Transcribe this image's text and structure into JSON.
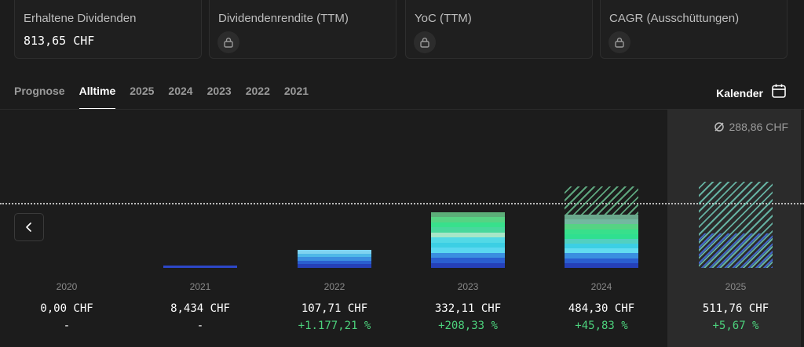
{
  "cards": [
    {
      "title": "Erhaltene Dividenden",
      "value": "813,65 CHF",
      "locked": false
    },
    {
      "title": "Dividendenrendite (TTM)",
      "value": null,
      "locked": true
    },
    {
      "title": "YoC (TTM)",
      "value": null,
      "locked": true
    },
    {
      "title": "CAGR (Ausschüttungen)",
      "value": null,
      "locked": true
    }
  ],
  "tabs": [
    "Prognose",
    "Alltime",
    "2025",
    "2024",
    "2023",
    "2022",
    "2021"
  ],
  "active_tab": "Alltime",
  "kalender_label": "Kalender",
  "average_label": "288,86 CHF",
  "icons": {
    "lock": "lock-icon",
    "calendar": "calendar-icon",
    "chevron": "chevron-left-icon",
    "average": "average-icon"
  },
  "colors": {
    "accent_green": "#4cd17c",
    "background": "#1c1c1c",
    "selected_column": "#2b2b2b"
  },
  "chart_data": {
    "type": "bar",
    "categories": [
      "2020",
      "2021",
      "2022",
      "2023",
      "2024",
      "2025"
    ],
    "values": [
      0,
      8.434,
      107.71,
      332.11,
      484.3,
      511.76
    ],
    "average": 288.86,
    "amount_labels": [
      "0,00 CHF",
      "8,434 CHF",
      "107,71 CHF",
      "332,11 CHF",
      "484,30 CHF",
      "511,76 CHF"
    ],
    "growth_labels": [
      "-",
      "-",
      "+1.177,21 %",
      "+208,33 %",
      "+45,83 %",
      "+5,67 %"
    ],
    "selected": "2025",
    "forecast_from": "2025"
  }
}
